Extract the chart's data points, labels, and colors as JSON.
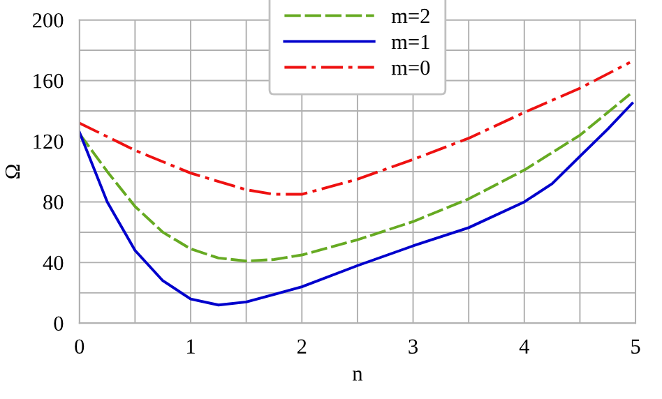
{
  "chart_data": {
    "type": "line",
    "xlabel": "n",
    "ylabel": "Ω",
    "xlim": [
      0,
      5
    ],
    "ylim": [
      0,
      200
    ],
    "xticks": [
      0,
      {
        "value": 0.5,
        "label": null
      },
      1,
      {
        "value": 1.5,
        "label": null
      },
      2,
      {
        "value": 2.5,
        "label": null
      },
      3,
      {
        "value": 3.5,
        "label": null
      },
      4,
      {
        "value": 4.5,
        "label": null
      },
      5
    ],
    "yticks": [
      0,
      {
        "value": 20,
        "label": null
      },
      40,
      {
        "value": 60,
        "label": null
      },
      80,
      {
        "value": 100,
        "label": null
      },
      120,
      {
        "value": 140,
        "label": null
      },
      160,
      {
        "value": 180,
        "label": null
      },
      200
    ],
    "grid": true,
    "legend": "top",
    "marker": "none",
    "series": [
      {
        "name": "m=2",
        "color": "#66aa22",
        "line_style": "dashed",
        "x": [
          0,
          0.25,
          0.5,
          0.75,
          1,
          1.25,
          1.5,
          1.75,
          2,
          2.5,
          3,
          3.5,
          4,
          4.5,
          4.95
        ],
        "values": [
          125,
          100,
          77,
          60,
          49,
          43,
          41,
          42,
          45,
          55,
          67,
          82,
          101,
          124,
          151
        ]
      },
      {
        "name": "m=1",
        "color": "#0000cc",
        "line_style": "solid",
        "x": [
          0,
          0.25,
          0.5,
          0.75,
          1,
          1.25,
          1.5,
          1.75,
          2,
          2.5,
          3,
          3.5,
          4,
          4.25,
          4.5,
          4.75,
          4.97
        ],
        "values": [
          126,
          80,
          48,
          28,
          16,
          12,
          14,
          19,
          24,
          38,
          51,
          63,
          80,
          92,
          110,
          128,
          145
        ]
      },
      {
        "name": "m=0",
        "color": "#ee1111",
        "line_style": "dashdot",
        "x": [
          0,
          0.5,
          1,
          1.5,
          1.75,
          2,
          2.5,
          3,
          3.5,
          4,
          4.5,
          4.95
        ],
        "values": [
          132,
          114,
          99,
          88,
          85,
          85,
          95,
          108,
          122,
          139,
          155,
          172
        ]
      }
    ]
  }
}
